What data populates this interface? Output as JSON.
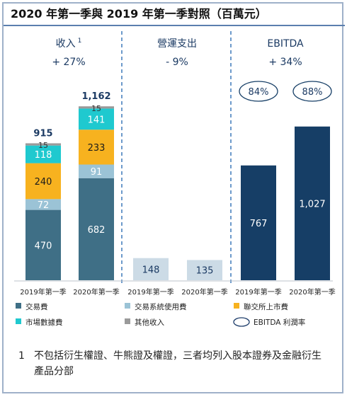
{
  "title": "2020 年第一季與 2019 年第一季對照（百萬元）",
  "chart_data": {
    "type": "bar",
    "stacked": true,
    "unit": "百萬元",
    "panels": [
      {
        "label": "收入",
        "footnote_marker": "1",
        "change": "+ 27%",
        "categories": [
          "2019年第一季",
          "2020年第一季"
        ],
        "totals": [
          "915",
          "1,162"
        ],
        "series": [
          {
            "name": "交易費",
            "values": [
              470,
              682
            ]
          },
          {
            "name": "交易系統使用費",
            "values": [
              72,
              91
            ]
          },
          {
            "name": "聯交所上市費",
            "values": [
              240,
              233
            ]
          },
          {
            "name": "市場數據費",
            "values": [
              118,
              141
            ]
          },
          {
            "name": "其他收入",
            "values": [
              15,
              15
            ]
          }
        ]
      },
      {
        "label": "營運支出",
        "change": "- 9%",
        "categories": [
          "2019年第一季",
          "2020年第一季"
        ],
        "values": [
          148,
          135
        ]
      },
      {
        "label": "EBITDA",
        "change": "+ 34%",
        "categories": [
          "2019年第一季",
          "2020年第一季"
        ],
        "values": [
          767,
          1027
        ],
        "value_labels": [
          "767",
          "1,027"
        ],
        "margins": [
          "84%",
          "88%"
        ]
      }
    ],
    "legend": [
      {
        "name": "交易費",
        "color": "#3f6f86",
        "shape": "square"
      },
      {
        "name": "交易系統使用費",
        "color": "#9bc3d6",
        "shape": "square"
      },
      {
        "name": "聯交所上市費",
        "color": "#f7b21f",
        "shape": "square"
      },
      {
        "name": "市場數據費",
        "color": "#1fc9cf",
        "shape": "square"
      },
      {
        "name": "其他收入",
        "color": "#9a9a9a",
        "shape": "square"
      },
      {
        "name": "EBITDA 利潤率",
        "color": "#1e3d6b",
        "shape": "ellipse"
      }
    ],
    "colors": {
      "opex": "#ccdbe6",
      "ebitda": "#163e66",
      "divider": "#2f6fb5",
      "title_rule": "#5b7fae",
      "border": "#9fb1c9"
    }
  },
  "footnote": {
    "marker": "1",
    "text": "不包括衍生權證、牛熊證及權證，三者均列入股本證券及金融衍生產品分部"
  }
}
